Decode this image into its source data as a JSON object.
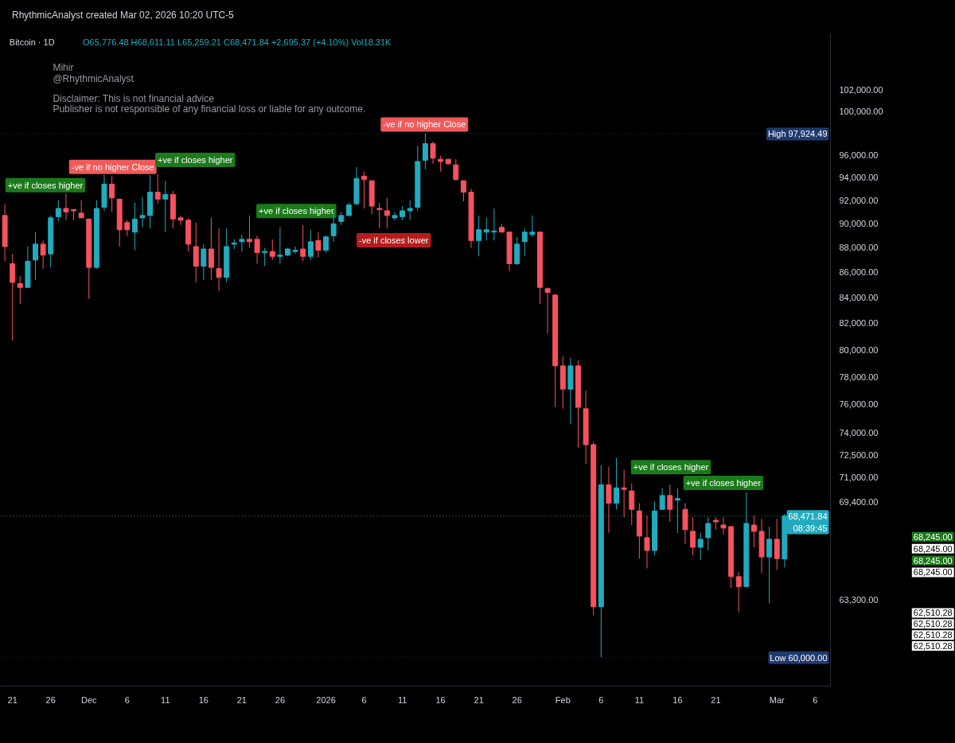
{
  "chart_data": {
    "type": "candlestick",
    "title": "Bitcoin · 1D",
    "subtitle": "O65,776.48 H68,611.11 L65,259.21 C68,471.84 +2,695.37 (+4.10%) Vol18.31K",
    "x": [
      "2025-11-20",
      "2025-11-21",
      "2025-11-22",
      "2025-11-23",
      "2025-11-24",
      "2025-11-25",
      "2025-11-26",
      "2025-11-27",
      "2025-11-28",
      "2025-11-29",
      "2025-11-30",
      "2025-12-01",
      "2025-12-02",
      "2025-12-03",
      "2025-12-04",
      "2025-12-05",
      "2025-12-06",
      "2025-12-07",
      "2025-12-08",
      "2025-12-09",
      "2025-12-10",
      "2025-12-11",
      "2025-12-12",
      "2025-12-13",
      "2025-12-14",
      "2025-12-15",
      "2025-12-16",
      "2025-12-17",
      "2025-12-18",
      "2025-12-19",
      "2025-12-20",
      "2025-12-21",
      "2025-12-22",
      "2025-12-23",
      "2025-12-24",
      "2025-12-25",
      "2025-12-26",
      "2025-12-27",
      "2025-12-28",
      "2025-12-29",
      "2025-12-30",
      "2025-12-31",
      "2026-01-01",
      "2026-01-02",
      "2026-01-03",
      "2026-01-04",
      "2026-01-05",
      "2026-01-06",
      "2026-01-07",
      "2026-01-08",
      "2026-01-09",
      "2026-01-10",
      "2026-01-11",
      "2026-01-12",
      "2026-01-13",
      "2026-01-14",
      "2026-01-15",
      "2026-01-16",
      "2026-01-17",
      "2026-01-18",
      "2026-01-19",
      "2026-01-20",
      "2026-01-21",
      "2026-01-22",
      "2026-01-23",
      "2026-01-24",
      "2026-01-25",
      "2026-01-26",
      "2026-01-27",
      "2026-01-28",
      "2026-01-29",
      "2026-01-30",
      "2026-01-31",
      "2026-02-01",
      "2026-02-02",
      "2026-02-03",
      "2026-02-04",
      "2026-02-05",
      "2026-02-06",
      "2026-02-07",
      "2026-02-08",
      "2026-02-09",
      "2026-02-10",
      "2026-02-11",
      "2026-02-12",
      "2026-02-13",
      "2026-02-14",
      "2026-02-15",
      "2026-02-16",
      "2026-02-17",
      "2026-02-18",
      "2026-02-19",
      "2026-02-20",
      "2026-02-21",
      "2026-02-22",
      "2026-02-23",
      "2026-02-24",
      "2026-02-25",
      "2026-02-26",
      "2026-02-27",
      "2026-02-28",
      "2026-03-01",
      "2026-03-02"
    ],
    "ohlc": [
      [
        90700,
        91700,
        86900,
        88100
      ],
      [
        86700,
        87500,
        80700,
        85200
      ],
      [
        85100,
        85700,
        83500,
        84800
      ],
      [
        84800,
        88100,
        84800,
        86900
      ],
      [
        87000,
        89300,
        85400,
        88300
      ],
      [
        88300,
        88600,
        86300,
        87400
      ],
      [
        87500,
        90700,
        86400,
        90500
      ],
      [
        90600,
        92000,
        90200,
        91300
      ],
      [
        91300,
        92600,
        90300,
        91000
      ],
      [
        91200,
        91200,
        90300,
        91100
      ],
      [
        90900,
        92000,
        90500,
        90500
      ],
      [
        90400,
        90400,
        83900,
        86400
      ],
      [
        86400,
        92000,
        86300,
        91300
      ],
      [
        91400,
        94200,
        91100,
        93400
      ],
      [
        93400,
        94100,
        91000,
        92200
      ],
      [
        92100,
        92100,
        88100,
        89500
      ],
      [
        90100,
        90300,
        89000,
        89500
      ],
      [
        89300,
        91800,
        87800,
        90400
      ],
      [
        90500,
        92300,
        89700,
        90700
      ],
      [
        90700,
        94200,
        89600,
        92700
      ],
      [
        92700,
        94300,
        91700,
        92100
      ],
      [
        92100,
        93700,
        89300,
        92500
      ],
      [
        92500,
        92800,
        89600,
        90400
      ],
      [
        90500,
        90700,
        89900,
        90300
      ],
      [
        90300,
        90500,
        87700,
        88300
      ],
      [
        88100,
        90100,
        85200,
        86500
      ],
      [
        86500,
        88300,
        85400,
        87900
      ],
      [
        87900,
        90500,
        85400,
        86400
      ],
      [
        86300,
        89600,
        84500,
        85600
      ],
      [
        85600,
        89600,
        85200,
        88100
      ],
      [
        88300,
        88700,
        87900,
        88400
      ],
      [
        88500,
        89100,
        87700,
        88700
      ],
      [
        88700,
        90700,
        88000,
        88500
      ],
      [
        88700,
        89000,
        86700,
        87600
      ],
      [
        87600,
        88000,
        86500,
        87700
      ],
      [
        87700,
        88700,
        87000,
        87300
      ],
      [
        87300,
        89700,
        86700,
        87400
      ],
      [
        87400,
        88000,
        87300,
        87900
      ],
      [
        87700,
        88100,
        87500,
        87800
      ],
      [
        87900,
        89900,
        86900,
        87300
      ],
      [
        87300,
        89500,
        87000,
        88500
      ],
      [
        88600,
        89300,
        87200,
        87800
      ],
      [
        87800,
        89000,
        87600,
        88900
      ],
      [
        89000,
        91000,
        88500,
        90000
      ],
      [
        90200,
        91000,
        89900,
        90700
      ],
      [
        90700,
        91800,
        90600,
        91600
      ],
      [
        91700,
        94900,
        91600,
        93900
      ],
      [
        94100,
        94500,
        91300,
        93800
      ],
      [
        93700,
        93700,
        90800,
        91500
      ],
      [
        91300,
        91800,
        89600,
        91200
      ],
      [
        91100,
        92200,
        89600,
        90700
      ],
      [
        90500,
        91000,
        90300,
        90700
      ],
      [
        90600,
        91500,
        90300,
        91100
      ],
      [
        91100,
        92000,
        90300,
        91300
      ],
      [
        91400,
        96800,
        91100,
        95400
      ],
      [
        95500,
        97924.49,
        94700,
        97000
      ],
      [
        97000,
        97200,
        95200,
        95700
      ],
      [
        95600,
        95900,
        94500,
        95400
      ],
      [
        95600,
        95600,
        95100,
        95200
      ],
      [
        95100,
        95600,
        93700,
        93800
      ],
      [
        93700,
        93700,
        91900,
        92700
      ],
      [
        92700,
        93000,
        88000,
        88600
      ],
      [
        88600,
        90700,
        87300,
        89500
      ],
      [
        89300,
        90500,
        88600,
        89500
      ],
      [
        89300,
        91300,
        88600,
        89400
      ],
      [
        89700,
        90000,
        89300,
        89300
      ],
      [
        89300,
        89300,
        86100,
        86700
      ],
      [
        86700,
        88900,
        86600,
        88300
      ],
      [
        88500,
        89600,
        87300,
        89300
      ],
      [
        89100,
        90700,
        88900,
        89300
      ],
      [
        89300,
        89300,
        83500,
        84800
      ],
      [
        84700,
        84800,
        81200,
        84400
      ],
      [
        84200,
        84200,
        75800,
        78800
      ],
      [
        78800,
        79500,
        75700,
        77100
      ],
      [
        77100,
        79400,
        74600,
        78800
      ],
      [
        78800,
        79200,
        73000,
        75800
      ],
      [
        75700,
        77000,
        71900,
        73200
      ],
      [
        73200,
        73400,
        62400,
        62900
      ],
      [
        62900,
        71800,
        60000,
        70500
      ],
      [
        70500,
        71700,
        67400,
        69300
      ],
      [
        69300,
        72300,
        68900,
        70300
      ],
      [
        70300,
        71500,
        68400,
        70200
      ],
      [
        70100,
        70600,
        67900,
        68900
      ],
      [
        68800,
        69300,
        65800,
        67200
      ],
      [
        67100,
        68500,
        65200,
        66300
      ],
      [
        66300,
        69400,
        66000,
        68800
      ],
      [
        68900,
        70300,
        68900,
        69800
      ],
      [
        69800,
        70500,
        68100,
        68900
      ],
      [
        69500,
        70300,
        67400,
        69600
      ],
      [
        68900,
        69300,
        66700,
        67600
      ],
      [
        67500,
        68400,
        66000,
        66500
      ],
      [
        66500,
        67400,
        65700,
        67000
      ],
      [
        67100,
        68400,
        66300,
        68000
      ],
      [
        68200,
        68400,
        67600,
        68100
      ],
      [
        67900,
        68400,
        67300,
        67700
      ],
      [
        67800,
        67800,
        64000,
        64700
      ],
      [
        64700,
        65000,
        62600,
        64100
      ],
      [
        64100,
        70000,
        64100,
        68000
      ],
      [
        67900,
        68500,
        66500,
        67500
      ],
      [
        67500,
        68300,
        64900,
        65900
      ],
      [
        65900,
        67800,
        63100,
        67000
      ],
      [
        67000,
        68300,
        65100,
        65800
      ],
      [
        65776.48,
        68611.11,
        65259.21,
        68471.84
      ]
    ],
    "colors": [
      "#f6525f",
      "#f6525f",
      "#f6525f",
      "#22abbf",
      "#22abbf",
      "#f6525f",
      "#22abbf",
      "#22abbf",
      "#f6525f",
      "#f6525f",
      "#f6525f",
      "#f6525f",
      "#22abbf",
      "#22abbf",
      "#f6525f",
      "#f6525f",
      "#f6525f",
      "#22abbf",
      "#22abbf",
      "#22abbf",
      "#f6525f",
      "#22abbf",
      "#f6525f",
      "#f6525f",
      "#f6525f",
      "#f6525f",
      "#22abbf",
      "#f6525f",
      "#f6525f",
      "#22abbf",
      "#22abbf",
      "#22abbf",
      "#f6525f",
      "#f6525f",
      "#22abbf",
      "#f6525f",
      "#22abbf",
      "#22abbf",
      "#22abbf",
      "#f6525f",
      "#22abbf",
      "#f6525f",
      "#22abbf",
      "#22abbf",
      "#22abbf",
      "#22abbf",
      "#22abbf",
      "#f6525f",
      "#f6525f",
      "#f6525f",
      "#f6525f",
      "#22abbf",
      "#22abbf",
      "#22abbf",
      "#22abbf",
      "#22abbf",
      "#f6525f",
      "#f6525f",
      "#f6525f",
      "#f6525f",
      "#f6525f",
      "#f6525f",
      "#22abbf",
      "#22abbf",
      "#22abbf",
      "#f6525f",
      "#f6525f",
      "#22abbf",
      "#22abbf",
      "#22abbf",
      "#f6525f",
      "#f6525f",
      "#f6525f",
      "#f6525f",
      "#22abbf",
      "#f6525f",
      "#f6525f",
      "#f6525f",
      "#22abbf",
      "#f6525f",
      "#22abbf",
      "#f6525f",
      "#f6525f",
      "#f6525f",
      "#f6525f",
      "#22abbf",
      "#22abbf",
      "#f6525f",
      "#22abbf",
      "#f6525f",
      "#f6525f",
      "#22abbf",
      "#22abbf",
      "#f6525f",
      "#f6525f",
      "#f6525f",
      "#f6525f",
      "#22abbf",
      "#f6525f",
      "#f6525f",
      "#22abbf",
      "#f6525f",
      "#22abbf"
    ],
    "xlim": [
      "2025-11-19T10:00",
      "2026-03-08"
    ],
    "xticks": [
      {
        "value": "2025-11-21",
        "label": "21"
      },
      {
        "value": "2025-11-26",
        "label": "26"
      },
      {
        "value": "2025-12-01",
        "label": "Dec"
      },
      {
        "value": "2025-12-06",
        "label": "6"
      },
      {
        "value": "2025-12-11",
        "label": "11"
      },
      {
        "value": "2025-12-16",
        "label": "16"
      },
      {
        "value": "2025-12-21",
        "label": "21"
      },
      {
        "value": "2025-12-26",
        "label": "26"
      },
      {
        "value": "2026-01-01",
        "label": "2026"
      },
      {
        "value": "2026-01-06",
        "label": "6"
      },
      {
        "value": "2026-01-11",
        "label": "11"
      },
      {
        "value": "2026-01-16",
        "label": "16"
      },
      {
        "value": "2026-01-21",
        "label": "21"
      },
      {
        "value": "2026-01-26",
        "label": "26"
      },
      {
        "value": "2026-02-01",
        "label": "Feb"
      },
      {
        "value": "2026-02-06",
        "label": "6"
      },
      {
        "value": "2026-02-11",
        "label": "11"
      },
      {
        "value": "2026-02-16",
        "label": "16"
      },
      {
        "value": "2026-02-21",
        "label": "21"
      },
      {
        "value": "2026-03-01",
        "label": "Mar"
      },
      {
        "value": "2026-03-06",
        "label": "6"
      }
    ],
    "log": true,
    "ylim": [
      58400,
      107500
    ],
    "yticks": [
      {
        "value": 102000,
        "label": "102,000.00"
      },
      {
        "value": 100000,
        "label": "100,000.00"
      },
      {
        "value": 96000,
        "label": "96,000.00"
      },
      {
        "value": 94000,
        "label": "94,000.00"
      },
      {
        "value": 92000,
        "label": "92,000.00"
      },
      {
        "value": 90000,
        "label": "90,000.00"
      },
      {
        "value": 88000,
        "label": "88,000.00"
      },
      {
        "value": 86000,
        "label": "86,000.00"
      },
      {
        "value": 84000,
        "label": "84,000.00"
      },
      {
        "value": 82000,
        "label": "82,000.00"
      },
      {
        "value": 80000,
        "label": "80,000.00"
      },
      {
        "value": 78000,
        "label": "78,000.00"
      },
      {
        "value": 76000,
        "label": "76,000.00"
      },
      {
        "value": 74000,
        "label": "74,000.00"
      },
      {
        "value": 72500,
        "label": "72,500.00"
      },
      {
        "value": 71000,
        "label": "71,000.00"
      },
      {
        "value": 69400,
        "label": "69,400.00"
      },
      {
        "value": 63300,
        "label": "63,300.00"
      }
    ],
    "ref_lines": [
      {
        "axis": "y",
        "value": 97924.49,
        "label": "High 97,924.49",
        "color": "#1e3a6e",
        "line_style": "dotted"
      },
      {
        "axis": "y",
        "value": 68471.84,
        "label": "68,471.84\n08:39:45",
        "color": "#22abbf",
        "line_style": "dotted"
      },
      {
        "axis": "y",
        "value": 60000,
        "label": "Low 60,000.00",
        "color": "#1e3a6e",
        "line_style": "dotted"
      }
    ],
    "annotations": [
      "RhythmicAnalyst created Mar 02, 2026 10:20 UTC-5",
      "Mihir",
      "@RhythmicAnalyst",
      "Disclaimer: This is not financial advice",
      "Publisher is not responsible of any financial loss or liable for any outcome.",
      "+ve if closes higher",
      "-ve if no higher Close",
      "+ve if closes higher",
      "+ve if closes higher",
      "-ve if closes lower",
      "-ve if no higher Close",
      "+ve if closes higher",
      "+ve if closes higher",
      "68,245.00",
      "68,245.00",
      "68,245.00",
      "68,245.00",
      "62,510.28",
      "62,510.28",
      "62,510.28",
      "62,510.28"
    ]
  }
}
